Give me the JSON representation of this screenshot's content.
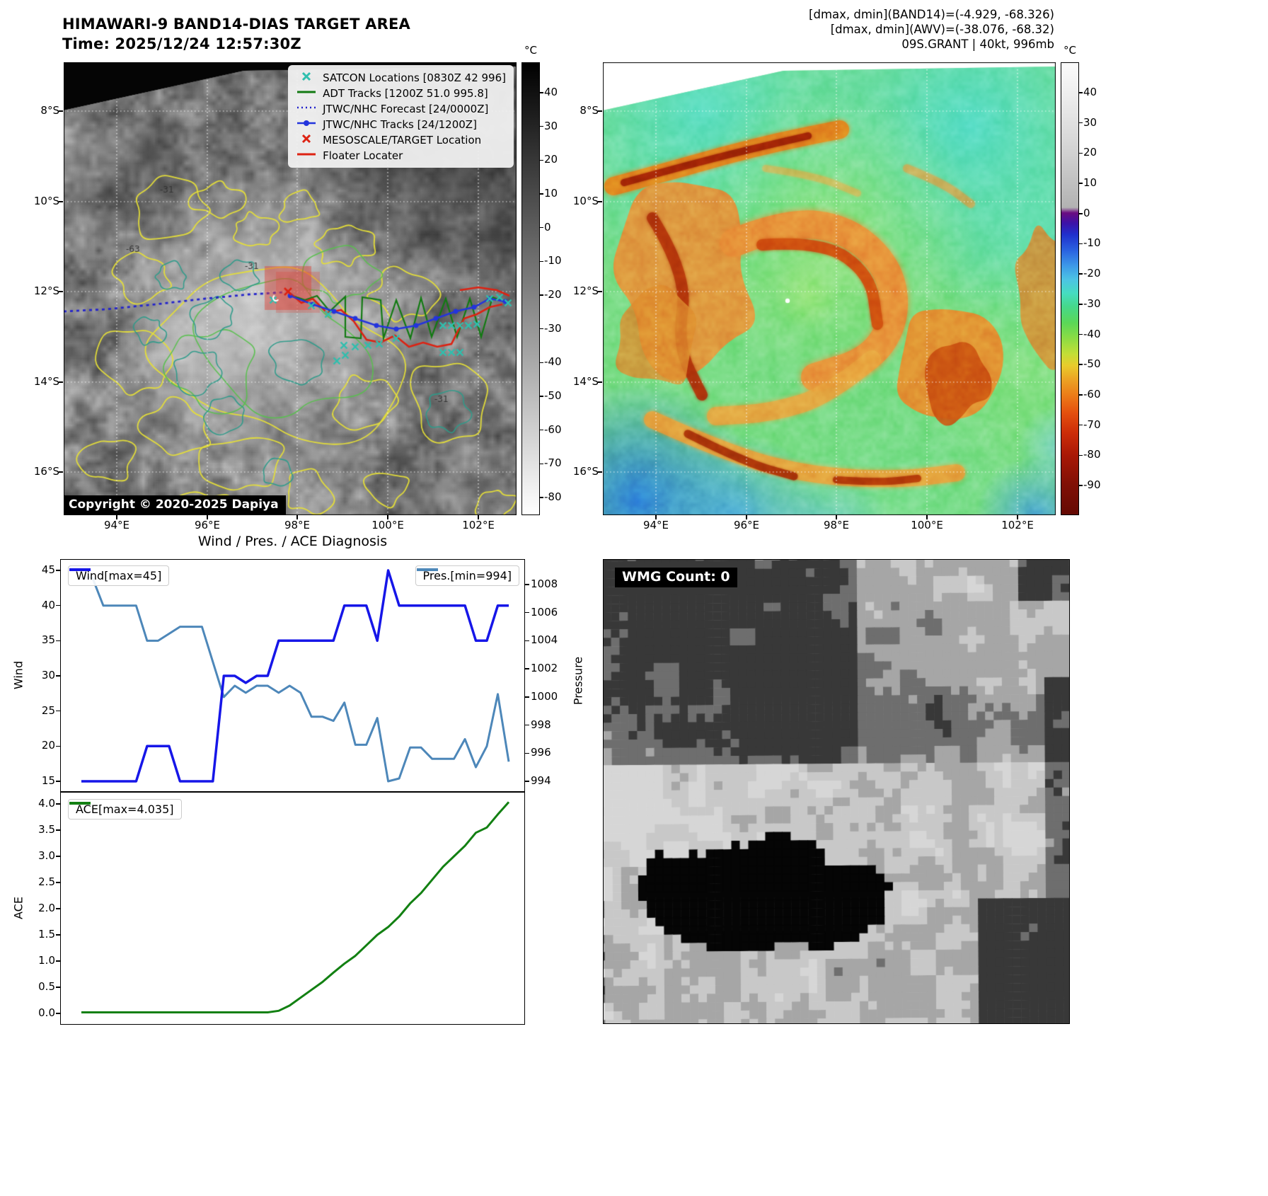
{
  "panel_ir": {
    "title": "HIMAWARI-9 BAND14-DIAS TARGET AREA",
    "subtitle": "Time: 2025/12/24 12:57:30Z",
    "copyright": "Copyright © 2020-2025 Dapiya",
    "contour_labels": [
      "-31",
      "-31",
      "-31",
      "-63"
    ],
    "colorbar": {
      "unit": "°C",
      "tick_labels": [
        "40",
        "30",
        "20",
        "10",
        "0",
        "-10",
        "-20",
        "-30",
        "-40",
        "-50",
        "-60",
        "-70",
        "-80"
      ]
    },
    "lat_tick_labels": [
      "8°S",
      "10°S",
      "12°S",
      "14°S",
      "16°S"
    ],
    "lon_tick_labels": [
      "94°E",
      "96°E",
      "98°E",
      "100°E",
      "102°E"
    ],
    "legend": [
      {
        "label": "SATCON Locations [0830Z 42 996]",
        "marker": "x",
        "color": "#2fbfae"
      },
      {
        "label": "ADT Tracks [1200Z 51.0 995.8]",
        "marker": "line",
        "color": "#127a12"
      },
      {
        "label": "JTWC/NHC Forecast [24/0000Z]",
        "marker": "dotted",
        "color": "#2323cc"
      },
      {
        "label": "JTWC/NHC Tracks [24/1200Z]",
        "marker": "line-dot",
        "color": "#2334dd"
      },
      {
        "label": "MESOSCALE/TARGET Location",
        "marker": "x",
        "color": "#dd2212"
      },
      {
        "label": "Floater Locater",
        "marker": "line",
        "color": "#dd2212"
      }
    ]
  },
  "panel_awv": {
    "header_lines": [
      "[dmax, dmin](BAND14)=(-4.929, -68.326)",
      "[dmax, dmin](AWV)=(-38.076, -68.32)",
      "09S.GRANT | 40kt, 996mb"
    ],
    "colorbar": {
      "unit": "°C",
      "tick_labels": [
        "40",
        "30",
        "20",
        "10",
        "0",
        "-10",
        "-20",
        "-30",
        "-40",
        "-50",
        "-60",
        "-70",
        "-80",
        "-90"
      ]
    },
    "lat_tick_labels": [
      "8°S",
      "10°S",
      "12°S",
      "14°S",
      "16°S"
    ],
    "lon_tick_labels": [
      "94°E",
      "96°E",
      "98°E",
      "100°E",
      "102°E"
    ]
  },
  "panel_diag": {
    "title": "Wind / Pres. / ACE Diagnosis",
    "ylabel_wind": "Wind",
    "ylabel_pres": "Pressure",
    "ylabel_ace": "ACE"
  },
  "panel_wmg": {
    "label": "WMG Count: 0"
  },
  "chart_data": [
    {
      "type": "line",
      "title": "Wind / Pres. / ACE Diagnosis",
      "x_note": "40 uniform time steps, no x tick labels shown in figure",
      "series": [
        {
          "name": "Wind",
          "legend": "Wind[max=45]",
          "color": "#1616e8",
          "axis": "left",
          "values": [
            15,
            15,
            15,
            15,
            15,
            15,
            20,
            20,
            20,
            15,
            15,
            15,
            15,
            30,
            30,
            29,
            30,
            30,
            35,
            35,
            35,
            35,
            35,
            35,
            40,
            40,
            40,
            35,
            45,
            40,
            40,
            40,
            40,
            40,
            40,
            40,
            35,
            35,
            40,
            40
          ]
        },
        {
          "name": "Pres.",
          "legend": "Pres.[min=994]",
          "color": "#4d87b9",
          "axis": "right",
          "values": [
            1008.5,
            1008.5,
            1006.5,
            1006.5,
            1006.5,
            1006.5,
            1004,
            1004,
            1004.5,
            1005,
            1005,
            1005,
            1002.5,
            1000,
            1000.8,
            1000.3,
            1000.8,
            1000.8,
            1000.3,
            1000.8,
            1000.3,
            998.6,
            998.6,
            998.3,
            999.6,
            996.6,
            996.6,
            998.5,
            994,
            994.2,
            996.4,
            996.4,
            995.6,
            995.6,
            995.6,
            997,
            995,
            996.5,
            1000.2,
            995.4
          ]
        }
      ],
      "left_axis": {
        "label": "Wind",
        "lim": [
          15,
          45
        ],
        "tick_labels": [
          "45",
          "40",
          "35",
          "30",
          "25",
          "20",
          "15"
        ]
      },
      "right_axis": {
        "label": "Pressure",
        "lim": [
          994,
          1008
        ],
        "tick_labels": [
          "1008",
          "1006",
          "1004",
          "1002",
          "1000",
          "998",
          "996",
          "994"
        ]
      },
      "grid": false,
      "legend_position": "upper-left and upper-right"
    },
    {
      "type": "line",
      "series": [
        {
          "name": "ACE",
          "legend": "ACE[max=4.035]",
          "color": "#128012",
          "axis": "left",
          "values": [
            0.02,
            0.02,
            0.02,
            0.02,
            0.02,
            0.02,
            0.02,
            0.02,
            0.02,
            0.02,
            0.02,
            0.02,
            0.02,
            0.02,
            0.02,
            0.02,
            0.02,
            0.02,
            0.05,
            0.15,
            0.3,
            0.45,
            0.6,
            0.78,
            0.95,
            1.1,
            1.3,
            1.5,
            1.65,
            1.85,
            2.1,
            2.3,
            2.55,
            2.8,
            3.0,
            3.2,
            3.45,
            3.55,
            3.8,
            4.035
          ]
        }
      ],
      "left_axis": {
        "label": "ACE",
        "lim": [
          0,
          4.035
        ],
        "tick_labels": [
          "4.0",
          "3.5",
          "3.0",
          "2.5",
          "2.0",
          "1.5",
          "1.0",
          "0.5",
          "0.0"
        ]
      },
      "grid": false,
      "legend_position": "upper-left"
    }
  ],
  "colors": {
    "ir_colorbar_top": "#000000",
    "ir_colorbar_bottom": "#ffffff",
    "contour_yellow": "#e6df38",
    "contour_teal": "#2d9b8a",
    "contour_green": "#58c04e",
    "grid_dotted_white": "#ffffff",
    "target_box_red": "#e04338",
    "forecast_blue": "#2323cc",
    "track_blue": "#2334dd",
    "track_red": "#dd2212",
    "track_green": "#127a12",
    "satcon_teal": "#2fbfae"
  }
}
